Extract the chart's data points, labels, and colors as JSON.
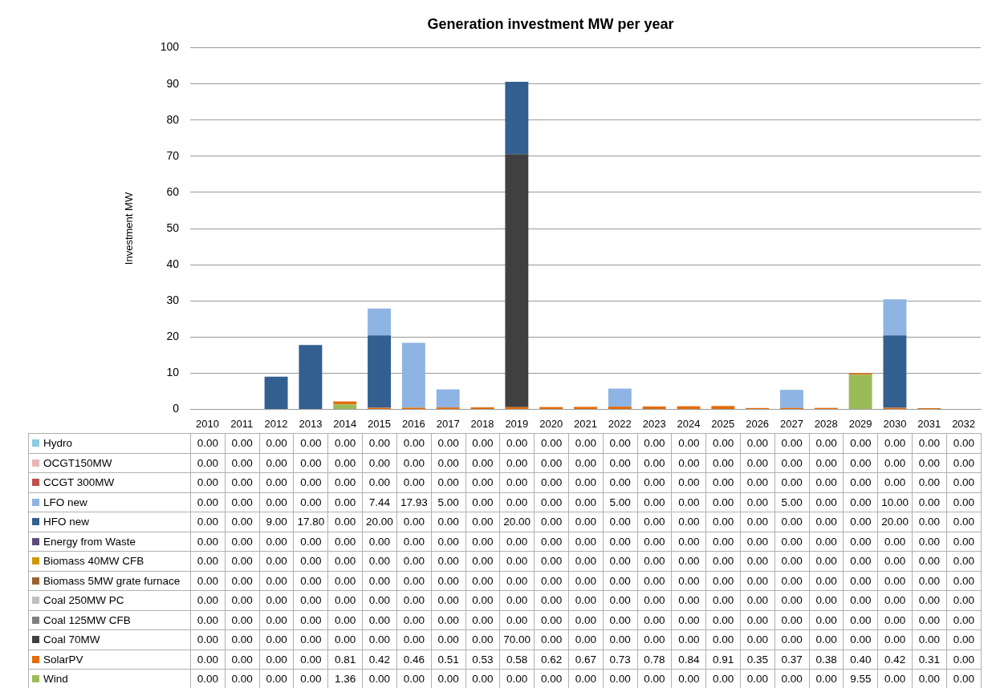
{
  "chart_data": {
    "type": "bar",
    "title": "Generation investment MW per year",
    "ylabel": "Investment MW",
    "categories": [
      "2010",
      "2011",
      "2012",
      "2013",
      "2014",
      "2015",
      "2016",
      "2017",
      "2018",
      "2019",
      "2020",
      "2021",
      "2022",
      "2023",
      "2024",
      "2025",
      "2026",
      "2027",
      "2028",
      "2029",
      "2030",
      "2031",
      "2032"
    ],
    "stacked": true,
    "ylim": [
      0,
      100
    ],
    "yticks": [
      0,
      10,
      20,
      30,
      40,
      50,
      60,
      70,
      80,
      90,
      100
    ],
    "grid": "y",
    "legend": "bottom",
    "series": [
      {
        "name": "Wind",
        "color": "#9bbb59",
        "values": [
          0,
          0,
          0,
          0,
          1.36,
          0,
          0,
          0,
          0,
          0,
          0,
          0,
          0,
          0,
          0,
          0,
          0,
          0,
          0,
          9.55,
          0,
          0,
          0
        ],
        "value_labels": [
          "0.00",
          "0.00",
          "0.00",
          "0.00",
          "1.36",
          "0.00",
          "0.00",
          "0.00",
          "0.00",
          "0.00",
          "0.00",
          "0.00",
          "0.00",
          "0.00",
          "0.00",
          "0.00",
          "0.00",
          "0.00",
          "0.00",
          "9.55",
          "0.00",
          "0.00",
          "0.00"
        ]
      },
      {
        "name": "SolarPV",
        "color": "#e46c0a",
        "values": [
          0,
          0,
          0,
          0,
          0.81,
          0.42,
          0.46,
          0.51,
          0.53,
          0.58,
          0.62,
          0.67,
          0.73,
          0.78,
          0.84,
          0.91,
          0.35,
          0.37,
          0.38,
          0.4,
          0.42,
          0.31,
          0
        ],
        "value_labels": [
          "0.00",
          "0.00",
          "0.00",
          "0.00",
          "0.81",
          "0.42",
          "0.46",
          "0.51",
          "0.53",
          "0.58",
          "0.62",
          "0.67",
          "0.73",
          "0.78",
          "0.84",
          "0.91",
          "0.35",
          "0.37",
          "0.38",
          "0.40",
          "0.42",
          "0.31",
          "0.00"
        ]
      },
      {
        "name": "Coal 70MW",
        "color": "#404040",
        "values": [
          0,
          0,
          0,
          0,
          0,
          0,
          0,
          0,
          0,
          70,
          0,
          0,
          0,
          0,
          0,
          0,
          0,
          0,
          0,
          0,
          0,
          0,
          0
        ],
        "value_labels": [
          "0.00",
          "0.00",
          "0.00",
          "0.00",
          "0.00",
          "0.00",
          "0.00",
          "0.00",
          "0.00",
          "70.00",
          "0.00",
          "0.00",
          "0.00",
          "0.00",
          "0.00",
          "0.00",
          "0.00",
          "0.00",
          "0.00",
          "0.00",
          "0.00",
          "0.00",
          "0.00"
        ]
      },
      {
        "name": "Coal 125MW CFB",
        "color": "#7f7f7f",
        "values": [
          0,
          0,
          0,
          0,
          0,
          0,
          0,
          0,
          0,
          0,
          0,
          0,
          0,
          0,
          0,
          0,
          0,
          0,
          0,
          0,
          0,
          0,
          0
        ],
        "value_labels": [
          "0.00",
          "0.00",
          "0.00",
          "0.00",
          "0.00",
          "0.00",
          "0.00",
          "0.00",
          "0.00",
          "0.00",
          "0.00",
          "0.00",
          "0.00",
          "0.00",
          "0.00",
          "0.00",
          "0.00",
          "0.00",
          "0.00",
          "0.00",
          "0.00",
          "0.00",
          "0.00"
        ]
      },
      {
        "name": "Coal 250MW PC",
        "color": "#bfbfbf",
        "values": [
          0,
          0,
          0,
          0,
          0,
          0,
          0,
          0,
          0,
          0,
          0,
          0,
          0,
          0,
          0,
          0,
          0,
          0,
          0,
          0,
          0,
          0,
          0
        ],
        "value_labels": [
          "0.00",
          "0.00",
          "0.00",
          "0.00",
          "0.00",
          "0.00",
          "0.00",
          "0.00",
          "0.00",
          "0.00",
          "0.00",
          "0.00",
          "0.00",
          "0.00",
          "0.00",
          "0.00",
          "0.00",
          "0.00",
          "0.00",
          "0.00",
          "0.00",
          "0.00",
          "0.00"
        ]
      },
      {
        "name": "Biomass 5MW grate furnace",
        "color": "#9a6333",
        "values": [
          0,
          0,
          0,
          0,
          0,
          0,
          0,
          0,
          0,
          0,
          0,
          0,
          0,
          0,
          0,
          0,
          0,
          0,
          0,
          0,
          0,
          0,
          0
        ],
        "value_labels": [
          "0.00",
          "0.00",
          "0.00",
          "0.00",
          "0.00",
          "0.00",
          "0.00",
          "0.00",
          "0.00",
          "0.00",
          "0.00",
          "0.00",
          "0.00",
          "0.00",
          "0.00",
          "0.00",
          "0.00",
          "0.00",
          "0.00",
          "0.00",
          "0.00",
          "0.00",
          "0.00"
        ]
      },
      {
        "name": "Biomass 40MW CFB",
        "color": "#cc9900",
        "values": [
          0,
          0,
          0,
          0,
          0,
          0,
          0,
          0,
          0,
          0,
          0,
          0,
          0,
          0,
          0,
          0,
          0,
          0,
          0,
          0,
          0,
          0,
          0
        ],
        "value_labels": [
          "0.00",
          "0.00",
          "0.00",
          "0.00",
          "0.00",
          "0.00",
          "0.00",
          "0.00",
          "0.00",
          "0.00",
          "0.00",
          "0.00",
          "0.00",
          "0.00",
          "0.00",
          "0.00",
          "0.00",
          "0.00",
          "0.00",
          "0.00",
          "0.00",
          "0.00",
          "0.00"
        ]
      },
      {
        "name": "Energy from Waste",
        "color": "#604a7b",
        "values": [
          0,
          0,
          0,
          0,
          0,
          0,
          0,
          0,
          0,
          0,
          0,
          0,
          0,
          0,
          0,
          0,
          0,
          0,
          0,
          0,
          0,
          0,
          0
        ],
        "value_labels": [
          "0.00",
          "0.00",
          "0.00",
          "0.00",
          "0.00",
          "0.00",
          "0.00",
          "0.00",
          "0.00",
          "0.00",
          "0.00",
          "0.00",
          "0.00",
          "0.00",
          "0.00",
          "0.00",
          "0.00",
          "0.00",
          "0.00",
          "0.00",
          "0.00",
          "0.00",
          "0.00"
        ]
      },
      {
        "name": "HFO new",
        "color": "#335f91",
        "values": [
          0,
          0,
          9,
          17.8,
          0,
          20,
          0,
          0,
          0,
          20,
          0,
          0,
          0,
          0,
          0,
          0,
          0,
          0,
          0,
          0,
          20,
          0,
          0
        ],
        "value_labels": [
          "0.00",
          "0.00",
          "9.00",
          "17.80",
          "0.00",
          "20.00",
          "0.00",
          "0.00",
          "0.00",
          "20.00",
          "0.00",
          "0.00",
          "0.00",
          "0.00",
          "0.00",
          "0.00",
          "0.00",
          "0.00",
          "0.00",
          "0.00",
          "20.00",
          "0.00",
          "0.00"
        ]
      },
      {
        "name": "LFO new",
        "color": "#8eb4e3",
        "values": [
          0,
          0,
          0,
          0,
          0,
          7.44,
          17.93,
          5,
          0,
          0,
          0,
          0,
          5,
          0,
          0,
          0,
          0,
          5,
          0,
          0,
          10,
          0,
          0
        ],
        "value_labels": [
          "0.00",
          "0.00",
          "0.00",
          "0.00",
          "0.00",
          "7.44",
          "17.93",
          "5.00",
          "0.00",
          "0.00",
          "0.00",
          "0.00",
          "5.00",
          "0.00",
          "0.00",
          "0.00",
          "0.00",
          "5.00",
          "0.00",
          "0.00",
          "10.00",
          "0.00",
          "0.00"
        ]
      },
      {
        "name": "CCGT 300MW",
        "color": "#c0504d",
        "values": [
          0,
          0,
          0,
          0,
          0,
          0,
          0,
          0,
          0,
          0,
          0,
          0,
          0,
          0,
          0,
          0,
          0,
          0,
          0,
          0,
          0,
          0,
          0
        ],
        "value_labels": [
          "0.00",
          "0.00",
          "0.00",
          "0.00",
          "0.00",
          "0.00",
          "0.00",
          "0.00",
          "0.00",
          "0.00",
          "0.00",
          "0.00",
          "0.00",
          "0.00",
          "0.00",
          "0.00",
          "0.00",
          "0.00",
          "0.00",
          "0.00",
          "0.00",
          "0.00",
          "0.00"
        ]
      },
      {
        "name": "OCGT150MW",
        "color": "#e6b9b8",
        "values": [
          0,
          0,
          0,
          0,
          0,
          0,
          0,
          0,
          0,
          0,
          0,
          0,
          0,
          0,
          0,
          0,
          0,
          0,
          0,
          0,
          0,
          0,
          0
        ],
        "value_labels": [
          "0.00",
          "0.00",
          "0.00",
          "0.00",
          "0.00",
          "0.00",
          "0.00",
          "0.00",
          "0.00",
          "0.00",
          "0.00",
          "0.00",
          "0.00",
          "0.00",
          "0.00",
          "0.00",
          "0.00",
          "0.00",
          "0.00",
          "0.00",
          "0.00",
          "0.00",
          "0.00"
        ]
      },
      {
        "name": "Hydro",
        "color": "#8ccbe0",
        "values": [
          0,
          0,
          0,
          0,
          0,
          0,
          0,
          0,
          0,
          0,
          0,
          0,
          0,
          0,
          0,
          0,
          0,
          0,
          0,
          0,
          0,
          0,
          0
        ],
        "value_labels": [
          "0.00",
          "0.00",
          "0.00",
          "0.00",
          "0.00",
          "0.00",
          "0.00",
          "0.00",
          "0.00",
          "0.00",
          "0.00",
          "0.00",
          "0.00",
          "0.00",
          "0.00",
          "0.00",
          "0.00",
          "0.00",
          "0.00",
          "0.00",
          "0.00",
          "0.00",
          "0.00"
        ]
      }
    ]
  }
}
